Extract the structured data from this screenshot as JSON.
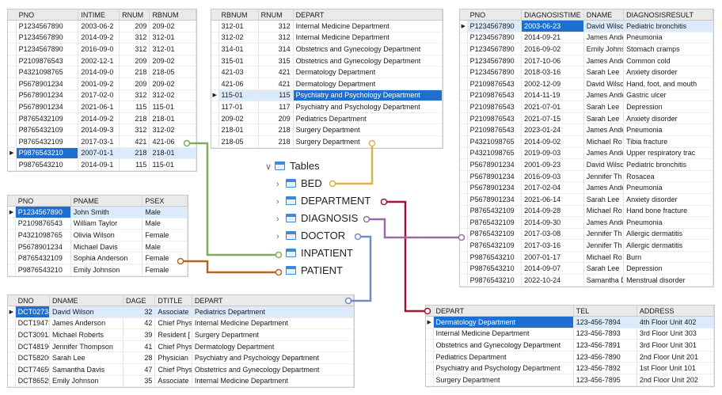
{
  "inpatient": {
    "columns": [
      "PNO",
      "INTIME",
      "RNUM",
      "RBNUM"
    ],
    "rows": [
      [
        "P1234567890",
        "2003-06-2",
        "209",
        "209-02"
      ],
      [
        "P1234567890",
        "2014-09-2",
        "312",
        "312-01"
      ],
      [
        "P1234567890",
        "2016-09-0",
        "312",
        "312-01"
      ],
      [
        "P2109876543",
        "2002-12-1",
        "209",
        "209-02"
      ],
      [
        "P4321098765",
        "2014-09-0",
        "218",
        "218-05"
      ],
      [
        "P5678901234",
        "2001-09-2",
        "209",
        "209-02"
      ],
      [
        "P5678901234",
        "2017-02-0",
        "312",
        "312-02"
      ],
      [
        "P5678901234",
        "2021-06-1",
        "115",
        "115-01"
      ],
      [
        "P8765432109",
        "2014-09-2",
        "218",
        "218-01"
      ],
      [
        "P8765432109",
        "2014-09-3",
        "312",
        "312-02"
      ],
      [
        "P8765432109",
        "2017-03-1",
        "421",
        "421-06"
      ],
      [
        "P9876543210",
        "2007-01-1",
        "218",
        "218-01"
      ],
      [
        "P9876543210",
        "2014-09-1",
        "115",
        "115-01"
      ]
    ]
  },
  "bed": {
    "columns": [
      "RBNUM",
      "RNUM",
      "DEPART"
    ],
    "rows": [
      [
        "312-01",
        "312",
        "Internal Medicine Department"
      ],
      [
        "312-02",
        "312",
        "Internal Medicine Department"
      ],
      [
        "314-01",
        "314",
        "Obstetrics and Gynecology Department"
      ],
      [
        "315-01",
        "315",
        "Obstetrics and Gynecology Department"
      ],
      [
        "421-03",
        "421",
        "Dermatology Department"
      ],
      [
        "421-06",
        "421",
        "Dermatology Department"
      ],
      [
        "115-01",
        "115",
        "Psychiatry and Psychology Department"
      ],
      [
        "117-01",
        "117",
        "Psychiatry and Psychology Department"
      ],
      [
        "209-02",
        "209",
        "Pediatrics Department"
      ],
      [
        "218-01",
        "218",
        "Surgery Department"
      ],
      [
        "218-05",
        "218",
        "Surgery Department"
      ]
    ]
  },
  "diagnosis": {
    "columns": [
      "PNO",
      "DIAGNOSISTIME",
      "DNAME",
      "DIAGNOSISRESULT"
    ],
    "rows": [
      [
        "P1234567890",
        "2003-06-23",
        "David Wilsc",
        "Pediatric bronchitis"
      ],
      [
        "P1234567890",
        "2014-09-21",
        "James Ande",
        "Pneumonia"
      ],
      [
        "P1234567890",
        "2016-09-02",
        "Emily Johns",
        "Stomach cramps"
      ],
      [
        "P1234567890",
        "2017-10-06",
        "James Ande",
        "Common cold"
      ],
      [
        "P1234567890",
        "2018-03-16",
        "Sarah Lee",
        "Anxiety disorder"
      ],
      [
        "P2109876543",
        "2002-12-09",
        "David Wilsc",
        "Hand, foot, and mouth"
      ],
      [
        "P2109876543",
        "2014-11-19",
        "James Ande",
        "Gastric ulcer"
      ],
      [
        "P2109876543",
        "2021-07-01",
        "Sarah Lee",
        "Depression"
      ],
      [
        "P2109876543",
        "2021-07-15",
        "Sarah Lee",
        "Anxiety disorder"
      ],
      [
        "P2109876543",
        "2023-01-24",
        "James Ande",
        "Pneumonia"
      ],
      [
        "P4321098765",
        "2014-09-02",
        "Michael Ro",
        "Tibia fracture"
      ],
      [
        "P4321098765",
        "2019-09-03",
        "James Ande",
        "Upper respiratory trac"
      ],
      [
        "P5678901234",
        "2001-09-23",
        "David Wilsc",
        "Pediatric bronchitis"
      ],
      [
        "P5678901234",
        "2016-09-03",
        "Jennifer Th",
        "Rosacea"
      ],
      [
        "P5678901234",
        "2017-02-04",
        "James Ande",
        "Pneumonia"
      ],
      [
        "P5678901234",
        "2021-06-14",
        "Sarah Lee",
        "Anxiety disorder"
      ],
      [
        "P8765432109",
        "2014-09-28",
        "Michael Ro",
        "Hand bone fracture"
      ],
      [
        "P8765432109",
        "2014-09-30",
        "James Ande",
        "Pneumonia"
      ],
      [
        "P8765432109",
        "2017-03-08",
        "Jennifer Th",
        "Allergic dermatitis"
      ],
      [
        "P8765432109",
        "2017-03-16",
        "Jennifer Th",
        "Allergic dermatitis"
      ],
      [
        "P9876543210",
        "2007-01-17",
        "Michael Ro",
        "Burn"
      ],
      [
        "P9876543210",
        "2014-09-07",
        "Sarah Lee",
        "Depression"
      ],
      [
        "P9876543210",
        "2022-10-24",
        "Samantha D",
        "Menstrual disorder"
      ]
    ]
  },
  "patient": {
    "columns": [
      "PNO",
      "PNAME",
      "PSEX"
    ],
    "rows": [
      [
        "P1234567890",
        "John Smith",
        "Male"
      ],
      [
        "P2109876543",
        "William Taylor",
        "Male"
      ],
      [
        "P4321098765",
        "Olivia Wilson",
        "Female"
      ],
      [
        "P5678901234",
        "Michael Davis",
        "Male"
      ],
      [
        "P8765432109",
        "Sophia Anderson",
        "Female"
      ],
      [
        "P9876543210",
        "Emily Johnson",
        "Female"
      ]
    ]
  },
  "doctor": {
    "columns": [
      "DNO",
      "DNAME",
      "DAGE",
      "DTITLE",
      "DEPART"
    ],
    "rows": [
      [
        "DCT02734",
        "David Wilson",
        "32",
        "Associate",
        "Pediatrics Department"
      ],
      [
        "DCT19473",
        "James Anderson",
        "42",
        "Chief Phys",
        "Internal Medicine Department"
      ],
      [
        "DCT30912",
        "Michael Roberts",
        "39",
        "Resident [",
        "Surgery Department"
      ],
      [
        "DCT48196",
        "Jennifer Thompson",
        "41",
        "Chief Phys",
        "Dermatology Department"
      ],
      [
        "DCT58206",
        "Sarah Lee",
        "28",
        "Physician",
        "Psychiatry and Psychology Department"
      ],
      [
        "DCT74650",
        "Samantha Davis",
        "47",
        "Chief Phys",
        "Obstetrics and Gynecology Department"
      ],
      [
        "DCT86529",
        "Emily Johnson",
        "35",
        "Associate",
        "Internal Medicine Department"
      ]
    ]
  },
  "department": {
    "columns": [
      "DEPART",
      "TEL",
      "ADDRESS"
    ],
    "rows": [
      [
        "Dermatology Department",
        "123-456-7894",
        "4th Floor Unit 402"
      ],
      [
        "Internal Medicine Department",
        "123-456-7893",
        "3rd Floor Unit 303"
      ],
      [
        "Obstetrics and Gynecology Department",
        "123-456-7891",
        "3rd Floor Unit 301"
      ],
      [
        "Pediatrics Department",
        "123-456-7890",
        "2nd Floor Unit 201"
      ],
      [
        "Psychiatry and Psychology Department",
        "123-456-7892",
        "1st Floor Unit 101"
      ],
      [
        "Surgery Department",
        "123-456-7895",
        "2nd Floor Unit 202"
      ]
    ]
  },
  "tree": {
    "root": "Tables",
    "items": [
      "BED",
      "DEPARTMENT",
      "DIAGNOSIS",
      "DOCTOR",
      "INPATIENT",
      "PATIENT"
    ]
  },
  "colors": {
    "bed": "#d9b24a",
    "department": "#9e1433",
    "diagnosis": "#9b6aa8",
    "doctor": "#6e8fc4",
    "inpatient": "#7fae5a",
    "patient": "#b5651d",
    "selection": "#1e6fd0",
    "selected_row": "#dcebfb"
  }
}
